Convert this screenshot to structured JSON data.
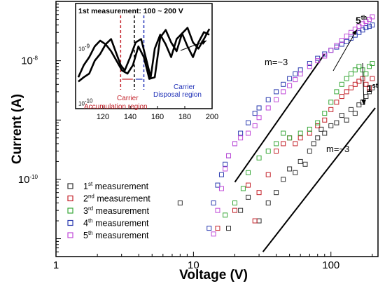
{
  "chart_data": [
    {
      "type": "scatter",
      "xlabel": "Voltage (V)",
      "ylabel": "Current (A)",
      "xscale": "log",
      "yscale": "log",
      "xlim": [
        1,
        220
      ],
      "ylim": [
        5e-12,
        1e-07
      ],
      "x_ticks": [
        {
          "value": 1,
          "label": "1"
        },
        {
          "value": 10,
          "label": "10"
        },
        {
          "value": 100,
          "label": "100"
        }
      ],
      "y_ticks": [
        {
          "value": 1e-10,
          "label": "10",
          "sup": "-10"
        },
        {
          "value": 1e-08,
          "label": "10",
          "sup": "-8"
        }
      ],
      "legend_position": "bottom-left",
      "series": [
        {
          "label": "1",
          "sup": "st",
          "suffix": " measurement",
          "color": "#333333",
          "x": [
            8,
            18,
            22,
            25,
            30,
            35,
            40,
            45,
            50,
            55,
            60,
            65,
            70,
            75,
            80,
            85,
            90,
            100,
            110,
            120,
            130,
            140,
            150,
            160,
            170,
            180,
            190,
            200
          ],
          "y": [
            4e-11,
            1.5e-11,
            3e-11,
            5e-11,
            2e-11,
            4e-11,
            6e-11,
            1e-10,
            1.5e-10,
            1.3e-10,
            2e-10,
            1.8e-10,
            3e-10,
            4e-10,
            5e-10,
            7e-10,
            6e-10,
            8e-10,
            9e-10,
            1.2e-09,
            1e-09,
            1.5e-09,
            1.3e-09,
            1.8e-09,
            2e-09,
            2.5e-09,
            3e-09,
            3.5e-09
          ]
        },
        {
          "label": "2",
          "sup": "nd",
          "suffix": " measurement",
          "color": "#c4232b",
          "x": [
            15,
            20,
            25,
            28,
            30,
            35,
            40,
            45,
            50,
            55,
            60,
            70,
            80,
            90,
            100,
            110,
            120,
            130,
            140,
            150,
            160,
            170,
            180,
            190,
            200
          ],
          "y": [
            1.5e-11,
            3e-11,
            8e-11,
            2e-11,
            6e-11,
            1.2e-10,
            3e-10,
            4e-10,
            5e-10,
            4e-10,
            5e-10,
            6e-10,
            8e-10,
            1e-09,
            1.5e-09,
            2e-09,
            2.5e-09,
            3e-09,
            3.5e-09,
            4e-09,
            4.5e-09,
            5e-09,
            4e-09,
            3.5e-09,
            5e-09
          ]
        },
        {
          "label": "3",
          "sup": "rd",
          "suffix": " measurement",
          "color": "#3aa83a",
          "x": [
            17,
            20,
            23,
            25,
            30,
            35,
            40,
            45,
            50,
            60,
            70,
            80,
            90,
            100,
            110,
            120,
            130,
            140,
            150,
            160,
            170,
            180,
            190,
            200
          ],
          "y": [
            2.5e-11,
            4e-11,
            7e-11,
            1.3e-10,
            2.3e-10,
            3e-10,
            4e-10,
            6e-10,
            5e-10,
            6e-10,
            7e-10,
            9e-10,
            1.3e-09,
            2e-09,
            3e-09,
            4e-09,
            5e-09,
            6e-09,
            7e-09,
            8e-09,
            7e-09,
            6e-09,
            8e-09,
            9e-09
          ]
        },
        {
          "label": "4",
          "sup": "th",
          "suffix": " measurement",
          "color": "#2c3cb0",
          "x": [
            13,
            14,
            15,
            16,
            17,
            18,
            20,
            22,
            25,
            28,
            30,
            35,
            40,
            45,
            50,
            55,
            60,
            70,
            80,
            90,
            100,
            110,
            120,
            130,
            140,
            150,
            160,
            170,
            180,
            190,
            200
          ],
          "y": [
            1.5e-11,
            4e-11,
            8e-11,
            1.2e-10,
            1.8e-10,
            2.5e-10,
            4e-10,
            6e-10,
            9e-10,
            1.3e-09,
            1.6e-09,
            2.2e-09,
            3e-09,
            4e-09,
            5e-09,
            6e-09,
            7e-09,
            9e-09,
            1.1e-08,
            1.3e-08,
            1.5e-08,
            1.7e-08,
            1.9e-08,
            2.1e-08,
            2.4e-08,
            2.7e-08,
            3e-08,
            3.3e-08,
            3.6e-08,
            3.8e-08,
            4e-08
          ]
        },
        {
          "label": "5",
          "sup": "th",
          "suffix": " measurement",
          "color": "#c04ad8",
          "x": [
            14,
            15,
            16,
            17,
            18,
            20,
            22,
            25,
            28,
            30,
            35,
            40,
            45,
            50,
            55,
            60,
            70,
            80,
            90,
            100,
            110,
            120,
            130,
            140,
            150,
            160,
            170,
            180,
            190,
            200
          ],
          "y": [
            1.2e-11,
            3e-11,
            7e-11,
            1.5e-10,
            2.5e-10,
            4e-10,
            5e-10,
            6e-10,
            8e-10,
            1.1e-09,
            1.6e-09,
            2.2e-09,
            3e-09,
            3.8e-09,
            4.8e-09,
            6e-09,
            8e-09,
            1e-08,
            1.2e-08,
            1.5e-08,
            1.8e-08,
            2.2e-08,
            2.6e-08,
            3e-08,
            3.4e-08,
            3.8e-08,
            4.2e-08,
            4.6e-08,
            5e-08,
            5.5e-08
          ]
        }
      ],
      "fit_lines": [
        {
          "label": "m=~3",
          "x": [
            20,
            90
          ],
          "y": [
            9e-11,
            1.3e-08
          ]
        },
        {
          "label": "m=~3",
          "x": [
            32,
            210
          ],
          "y": [
            6e-12,
            1.6e-09
          ]
        }
      ],
      "annotations": [
        {
          "text": "5",
          "sup": "th"
        },
        {
          "text": "1",
          "sup": "st"
        }
      ]
    },
    {
      "type": "line",
      "title": "1st measurement: 100 ~ 200 V",
      "yscale": "log",
      "xlim": [
        100,
        200
      ],
      "x_ticks": [
        {
          "value": 120,
          "label": "120"
        },
        {
          "value": 140,
          "label": "140"
        },
        {
          "value": 160,
          "label": "160"
        },
        {
          "value": 180,
          "label": "180"
        },
        {
          "value": 200,
          "label": "200"
        }
      ],
      "y_ticks": [
        {
          "value": 1e-09,
          "label": "10",
          "sup": "-9"
        },
        {
          "value": 1e-10,
          "label": "10",
          "sup": "-10"
        }
      ],
      "series": [
        {
          "x": [
            102,
            106,
            110,
            114,
            118,
            122,
            126,
            130,
            133,
            136,
            140,
            144,
            148,
            152,
            155,
            158,
            162,
            166,
            170,
            174,
            178,
            182,
            186,
            190,
            194,
            198
          ],
          "y": [
            2.5e-10,
            3e-10,
            3.5e-10,
            6e-10,
            8e-10,
            1.2e-09,
            1.5e-09,
            8e-10,
            5e-10,
            4e-10,
            7e-10,
            1.3e-09,
            1.5e-09,
            6e-10,
            3e-10,
            1e-09,
            1.8e-09,
            1.2e-09,
            7e-10,
            1.5e-09,
            1.9e-09,
            1.1e-09,
            7e-10,
            1.3e-09,
            2e-09,
            1.8e-09
          ]
        },
        {
          "x": [
            102,
            106,
            110,
            114,
            118,
            122,
            126,
            130,
            134,
            138,
            142,
            146,
            150,
            154,
            158,
            162,
            166,
            170,
            174,
            178,
            182,
            186,
            190,
            194,
            198
          ],
          "y": [
            3e-10,
            5e-10,
            7e-10,
            1.1e-09,
            1.4e-09,
            1.2e-09,
            9e-10,
            6e-10,
            4e-10,
            3.5e-10,
            5e-10,
            1.1e-09,
            7e-10,
            2.8e-10,
            3e-10,
            1.6e-09,
            2.2e-09,
            1.3e-09,
            9e-10,
            1.9e-09,
            2.4e-09,
            1.3e-09,
            1e-09,
            1.5e-09,
            2.3e-09
          ]
        }
      ],
      "markers": [
        {
          "x": 133,
          "color": "#c4232b"
        },
        {
          "x": 143,
          "color": "#000000"
        },
        {
          "x": 150,
          "color": "#2233b8"
        }
      ],
      "regions": [
        {
          "lines": [
            "Carrier",
            "Accumulation region"
          ],
          "color": "#c4232b"
        },
        {
          "lines": [
            "Carrier",
            "Disposal region"
          ],
          "color": "#2233b8"
        }
      ]
    }
  ]
}
